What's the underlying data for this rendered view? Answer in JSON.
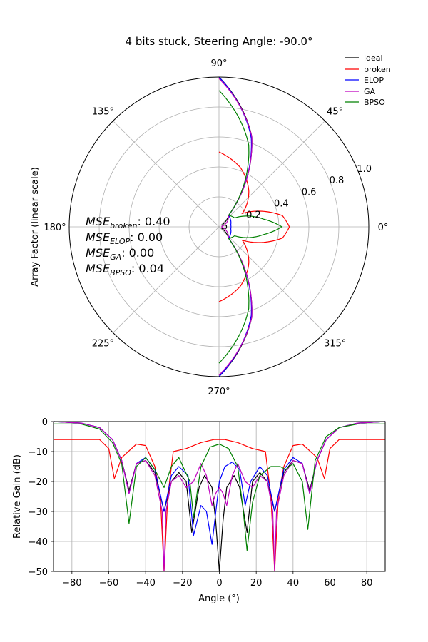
{
  "title": "4 bits stuck, Steering Angle: -90.0°",
  "legend": {
    "placement": "top-right",
    "entries": [
      {
        "key": "ideal",
        "label": "ideal",
        "color": "#000000"
      },
      {
        "key": "broken",
        "label": "broken",
        "color": "#ff0000"
      },
      {
        "key": "elop",
        "label": "ELOP",
        "color": "#0000ff"
      },
      {
        "key": "ga",
        "label": "GA",
        "color": "#bf00bf"
      },
      {
        "key": "bpso",
        "label": "BPSO",
        "color": "#008000"
      }
    ]
  },
  "mse": [
    {
      "name": "broken",
      "value": "0.40"
    },
    {
      "name": "ELOP",
      "value": "0.00"
    },
    {
      "name": "GA",
      "value": "0.00"
    },
    {
      "name": "BPSO",
      "value": "0.04"
    }
  ],
  "chart_data": [
    {
      "type": "line",
      "subtype": "polar",
      "ylabel": "Array Factor (linear scale)",
      "angle_ticks": [
        "0°",
        "45°",
        "90°",
        "135°",
        "180°",
        "225°",
        "270°",
        "315°"
      ],
      "radial_ticks": [
        "0.2",
        "0.4",
        "0.6",
        "0.8",
        "1.0"
      ],
      "rlim": [
        0,
        1.0
      ],
      "grid": true,
      "series": [
        {
          "name": "ideal",
          "theta_deg": [
            -90,
            -70,
            -50,
            -30,
            -10,
            10,
            30,
            50,
            70,
            90
          ],
          "r": [
            1.0,
            0.64,
            0.1,
            0.02,
            0.05,
            0.05,
            0.02,
            0.1,
            0.64,
            1.0
          ]
        },
        {
          "name": "broken",
          "theta_deg": [
            -90,
            -70,
            -50,
            -30,
            -10,
            0,
            10,
            30,
            50,
            70,
            90
          ],
          "r": [
            0.5,
            0.42,
            0.31,
            0.18,
            0.43,
            0.47,
            0.43,
            0.18,
            0.31,
            0.42,
            0.5
          ]
        },
        {
          "name": "ELOP",
          "theta_deg": [
            -90,
            -70,
            -50,
            -30,
            -10,
            10,
            30,
            50,
            70,
            90
          ],
          "r": [
            1.0,
            0.63,
            0.1,
            0.09,
            0.08,
            0.08,
            0.09,
            0.1,
            0.63,
            1.0
          ]
        },
        {
          "name": "GA",
          "theta_deg": [
            -90,
            -70,
            -50,
            -30,
            -10,
            10,
            30,
            50,
            70,
            90
          ],
          "r": [
            0.99,
            0.64,
            0.1,
            0.06,
            0.02,
            0.02,
            0.06,
            0.1,
            0.64,
            0.99
          ]
        },
        {
          "name": "BPSO",
          "theta_deg": [
            -90,
            -70,
            -50,
            -30,
            -10,
            0,
            10,
            30,
            50,
            70,
            90
          ],
          "r": [
            0.91,
            0.58,
            0.1,
            0.12,
            0.3,
            0.42,
            0.3,
            0.12,
            0.1,
            0.58,
            0.91
          ]
        }
      ]
    },
    {
      "type": "line",
      "xlabel": "Angle (°)",
      "ylabel": "Relative Gain (dB)",
      "xlim": [
        -90,
        90
      ],
      "ylim": [
        -50,
        0
      ],
      "xticks": [
        -80,
        -60,
        -40,
        -20,
        0,
        20,
        40,
        60,
        80
      ],
      "yticks": [
        0,
        -10,
        -20,
        -30,
        -40,
        -50
      ],
      "grid": true,
      "series": [
        {
          "name": "ideal",
          "x": [
            -90,
            -75,
            -65,
            -58,
            -53,
            -49,
            -45,
            -40,
            -35,
            -30,
            -26,
            -22,
            -18,
            -15,
            -11,
            -8,
            -4,
            -2,
            0,
            2,
            4,
            8,
            11,
            15,
            18,
            22,
            26,
            30,
            35,
            40,
            45,
            49,
            53,
            58,
            65,
            75,
            90
          ],
          "y": [
            0,
            -0.5,
            -2,
            -6,
            -13,
            -23,
            -14,
            -13,
            -17,
            -30,
            -20,
            -17,
            -20,
            -37,
            -22,
            -18,
            -22,
            -33,
            -50,
            -33,
            -22,
            -18,
            -22,
            -37,
            -20,
            -17,
            -20,
            -30,
            -17,
            -13,
            -14,
            -23,
            -13,
            -6,
            -2,
            -0.5,
            0
          ]
        },
        {
          "name": "broken",
          "x": [
            -90,
            -65,
            -60,
            -57,
            -53,
            -45,
            -40,
            -35,
            -32,
            -30,
            -28,
            -25,
            -18,
            -10,
            -3,
            0,
            3,
            10,
            18,
            25,
            28,
            30,
            32,
            35,
            40,
            45,
            53,
            57,
            60,
            65,
            90
          ],
          "y": [
            -6,
            -6,
            -9,
            -19,
            -12,
            -7.5,
            -8,
            -15,
            -25,
            -50,
            -25,
            -10,
            -9,
            -7,
            -6,
            -6,
            -6,
            -7,
            -9,
            -10,
            -25,
            -50,
            -25,
            -15,
            -8,
            -7.5,
            -12,
            -19,
            -9,
            -6,
            -6
          ]
        },
        {
          "name": "ELOP",
          "x": [
            -90,
            -75,
            -65,
            -58,
            -53,
            -49,
            -45,
            -40,
            -35,
            -30,
            -26,
            -22,
            -17,
            -14,
            -10,
            -7,
            -4,
            0,
            3,
            7,
            11,
            14,
            17,
            22,
            26,
            30,
            35,
            40,
            45,
            49,
            53,
            58,
            65,
            75,
            90
          ],
          "y": [
            0,
            -0.5,
            -2,
            -6,
            -13,
            -24,
            -14,
            -12,
            -16,
            -30,
            -18,
            -15,
            -18,
            -38,
            -28,
            -30,
            -41,
            -20,
            -15,
            -13.5,
            -16,
            -28,
            -20,
            -15,
            -18,
            -30,
            -16,
            -12,
            -14,
            -24,
            -13,
            -6,
            -2,
            -0.5,
            0
          ]
        },
        {
          "name": "GA",
          "x": [
            -90,
            -75,
            -65,
            -58,
            -53,
            -49,
            -45,
            -40,
            -35,
            -31,
            -30,
            -29,
            -26,
            -22,
            -18,
            -14,
            -10,
            -7,
            -4,
            -2,
            0,
            2,
            4,
            7,
            10,
            14,
            18,
            22,
            26,
            29,
            30,
            31,
            35,
            40,
            45,
            49,
            53,
            58,
            65,
            75,
            90
          ],
          "y": [
            0,
            -0.5,
            -2,
            -6,
            -13,
            -24,
            -14,
            -13,
            -18,
            -30,
            -50,
            -30,
            -20,
            -18,
            -22,
            -20,
            -14,
            -18,
            -28,
            -24,
            -22,
            -24,
            -28,
            -18,
            -14,
            -20,
            -22,
            -18,
            -20,
            -30,
            -50,
            -30,
            -18,
            -13,
            -14,
            -24,
            -13,
            -6,
            -2,
            -0.5,
            0
          ]
        },
        {
          "name": "BPSO",
          "x": [
            -90,
            -75,
            -65,
            -58,
            -53,
            -49,
            -45,
            -40,
            -35,
            -30,
            -26,
            -22,
            -16,
            -14,
            -10,
            -5,
            0,
            5,
            10,
            13,
            15,
            18,
            22,
            28,
            33,
            36,
            40,
            45,
            48,
            52,
            58,
            65,
            75,
            90
          ],
          "y": [
            -0.8,
            -0.8,
            -2.5,
            -7,
            -14,
            -34,
            -15,
            -12,
            -16,
            -22,
            -15,
            -12,
            -20,
            -32,
            -15,
            -8.5,
            -7.5,
            -9,
            -15,
            -30,
            -43,
            -27,
            -18,
            -15,
            -15,
            -16,
            -14,
            -20,
            -36,
            -13,
            -5,
            -2,
            -0.8,
            -0.8
          ]
        }
      ]
    }
  ]
}
